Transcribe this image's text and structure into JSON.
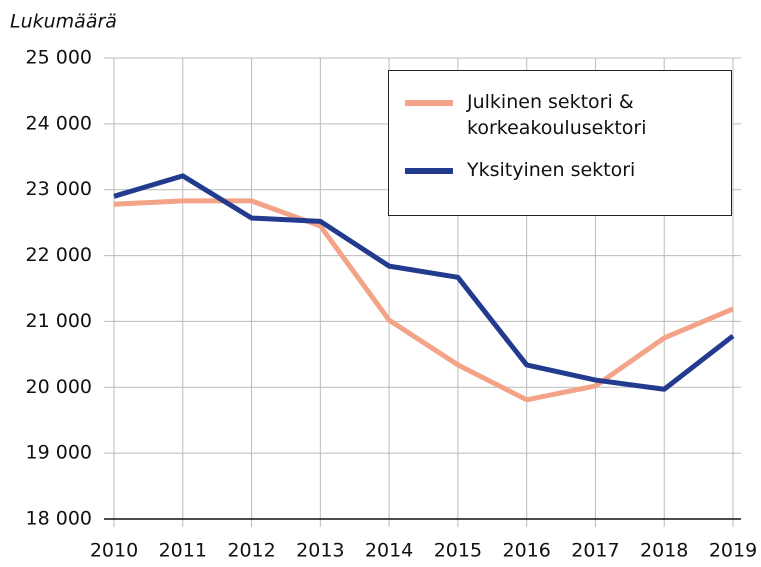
{
  "chart_data": {
    "type": "line",
    "y_axis_label": "Lukumäärä",
    "x": [
      2010,
      2011,
      2012,
      2013,
      2014,
      2015,
      2016,
      2017,
      2018,
      2019
    ],
    "xlim": [
      2010,
      2019
    ],
    "xticks": [
      2010,
      2011,
      2012,
      2013,
      2014,
      2015,
      2016,
      2017,
      2018,
      2019
    ],
    "ylim": [
      18000,
      25000
    ],
    "yticks": [
      {
        "value": 18000,
        "label": "18 000"
      },
      {
        "value": 19000,
        "label": "19 000"
      },
      {
        "value": 20000,
        "label": "20 000"
      },
      {
        "value": 21000,
        "label": "21 000"
      },
      {
        "value": 22000,
        "label": "22 000"
      },
      {
        "value": 23000,
        "label": "23 000"
      },
      {
        "value": 24000,
        "label": "24 000"
      },
      {
        "value": 25000,
        "label": "25 000"
      }
    ],
    "grid": true,
    "legend": "upper right",
    "series": [
      {
        "name": "Julkinen sektori & korkeakoulusektori",
        "color": "#f3a488",
        "values": [
          22780,
          22830,
          22830,
          22450,
          21020,
          20340,
          19810,
          20020,
          20750,
          21190
        ]
      },
      {
        "name": "Yksityinen sektori",
        "color": "#233b8e",
        "values": [
          22900,
          23210,
          22570,
          22520,
          21840,
          21670,
          20340,
          20110,
          19970,
          20780
        ]
      }
    ]
  }
}
